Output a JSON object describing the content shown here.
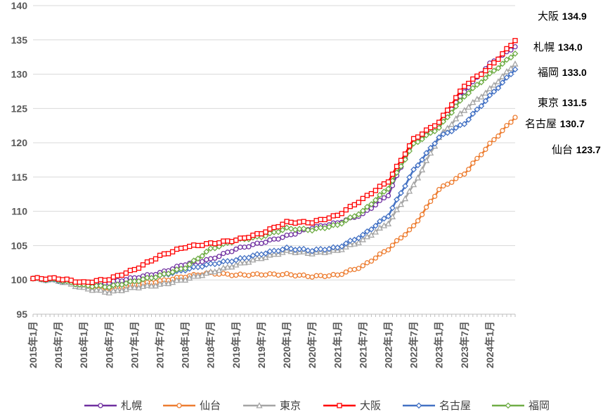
{
  "chart_data": {
    "type": "line",
    "title": "",
    "xlabel": "",
    "ylabel": "",
    "ylim": [
      95,
      140
    ],
    "yticks": [
      "95",
      "100",
      "105",
      "110",
      "115",
      "120",
      "125",
      "130",
      "135",
      "140"
    ],
    "x_tick_labels": [
      "2015年1月",
      "2015年7月",
      "2016年1月",
      "2016年7月",
      "2017年1月",
      "2017年7月",
      "2018年1月",
      "2018年7月",
      "2019年1月",
      "2019年7月",
      "2020年1月",
      "2020年7月",
      "2021年1月",
      "2021年7月",
      "2022年1月",
      "2022年7月",
      "2023年1月",
      "2023年7月",
      "2024年1月"
    ],
    "legend_position": "bottom",
    "grid": "horizontal",
    "series": [
      {
        "name": "札幌",
        "color": "#7030A0",
        "marker": "circle",
        "anchors": [
          [
            0,
            100.2
          ],
          [
            6,
            100.2
          ],
          [
            12,
            99.5
          ],
          [
            18,
            99.6
          ],
          [
            24,
            100.3
          ],
          [
            30,
            101.0
          ],
          [
            36,
            102.3
          ],
          [
            42,
            103.0
          ],
          [
            48,
            104.5
          ],
          [
            54,
            105.4
          ],
          [
            60,
            106.4
          ],
          [
            66,
            107.6
          ],
          [
            72,
            108.3
          ],
          [
            78,
            109.6
          ],
          [
            84,
            112.4
          ],
          [
            90,
            120.5
          ],
          [
            96,
            122.5
          ],
          [
            102,
            127.5
          ],
          [
            108,
            131.5
          ],
          [
            114,
            134.0
          ]
        ],
        "end_value": 134.0
      },
      {
        "name": "仙台",
        "color": "#ED7D31",
        "marker": "circle",
        "anchors": [
          [
            0,
            100.2
          ],
          [
            6,
            100.0
          ],
          [
            12,
            99.2
          ],
          [
            18,
            98.8
          ],
          [
            24,
            99.3
          ],
          [
            30,
            99.8
          ],
          [
            36,
            100.5
          ],
          [
            42,
            101.0
          ],
          [
            48,
            100.7
          ],
          [
            54,
            100.8
          ],
          [
            60,
            100.8
          ],
          [
            66,
            100.5
          ],
          [
            72,
            100.7
          ],
          [
            78,
            102.0
          ],
          [
            84,
            104.5
          ],
          [
            90,
            107.8
          ],
          [
            96,
            113.2
          ],
          [
            102,
            115.5
          ],
          [
            108,
            119.8
          ],
          [
            114,
            123.7
          ]
        ],
        "end_value": 123.7
      },
      {
        "name": "東京",
        "color": "#A5A5A5",
        "marker": "triangle",
        "anchors": [
          [
            0,
            100.2
          ],
          [
            6,
            99.9
          ],
          [
            12,
            98.8
          ],
          [
            18,
            98.2
          ],
          [
            24,
            98.9
          ],
          [
            30,
            99.3
          ],
          [
            36,
            100.1
          ],
          [
            42,
            101.1
          ],
          [
            48,
            102.2
          ],
          [
            54,
            103.2
          ],
          [
            60,
            104.2
          ],
          [
            66,
            103.9
          ],
          [
            72,
            104.3
          ],
          [
            78,
            105.8
          ],
          [
            84,
            108.3
          ],
          [
            90,
            113.8
          ],
          [
            96,
            120.8
          ],
          [
            102,
            124.8
          ],
          [
            108,
            127.8
          ],
          [
            114,
            131.5
          ]
        ],
        "end_value": 131.5
      },
      {
        "name": "大阪",
        "color": "#FF0000",
        "marker": "square",
        "anchors": [
          [
            0,
            100.2
          ],
          [
            6,
            100.2
          ],
          [
            12,
            99.6
          ],
          [
            18,
            100.1
          ],
          [
            24,
            101.5
          ],
          [
            30,
            103.5
          ],
          [
            36,
            104.8
          ],
          [
            42,
            105.3
          ],
          [
            48,
            105.8
          ],
          [
            54,
            106.8
          ],
          [
            60,
            108.4
          ],
          [
            66,
            108.4
          ],
          [
            72,
            109.4
          ],
          [
            78,
            111.8
          ],
          [
            84,
            114.4
          ],
          [
            90,
            120.5
          ],
          [
            96,
            123.0
          ],
          [
            102,
            128.3
          ],
          [
            108,
            131.0
          ],
          [
            114,
            134.9
          ]
        ],
        "end_value": 134.9
      },
      {
        "name": "名古屋",
        "color": "#4472C4",
        "marker": "diamond",
        "anchors": [
          [
            0,
            100.2
          ],
          [
            6,
            99.9
          ],
          [
            12,
            99.4
          ],
          [
            18,
            99.0
          ],
          [
            24,
            99.8
          ],
          [
            30,
            100.6
          ],
          [
            36,
            101.5
          ],
          [
            42,
            102.3
          ],
          [
            48,
            102.9
          ],
          [
            54,
            103.8
          ],
          [
            60,
            104.6
          ],
          [
            66,
            104.3
          ],
          [
            72,
            104.7
          ],
          [
            78,
            106.5
          ],
          [
            84,
            109.4
          ],
          [
            90,
            116.0
          ],
          [
            96,
            120.8
          ],
          [
            102,
            122.8
          ],
          [
            108,
            126.8
          ],
          [
            114,
            130.7
          ]
        ],
        "end_value": 130.7
      },
      {
        "name": "福岡",
        "color": "#70AD47",
        "marker": "diamond",
        "anchors": [
          [
            0,
            100.2
          ],
          [
            6,
            100.0
          ],
          [
            12,
            99.2
          ],
          [
            18,
            99.0
          ],
          [
            24,
            99.8
          ],
          [
            30,
            100.6
          ],
          [
            36,
            101.8
          ],
          [
            42,
            104.5
          ],
          [
            48,
            105.8
          ],
          [
            54,
            106.3
          ],
          [
            60,
            107.5
          ],
          [
            66,
            107.3
          ],
          [
            72,
            108.0
          ],
          [
            78,
            110.0
          ],
          [
            84,
            113.4
          ],
          [
            90,
            119.8
          ],
          [
            96,
            122.2
          ],
          [
            102,
            126.8
          ],
          [
            108,
            130.0
          ],
          [
            114,
            133.0
          ]
        ],
        "end_value": 133.0
      }
    ],
    "end_labels_order": [
      "大阪",
      "札幌",
      "福岡",
      "東京",
      "名古屋",
      "仙台"
    ]
  }
}
